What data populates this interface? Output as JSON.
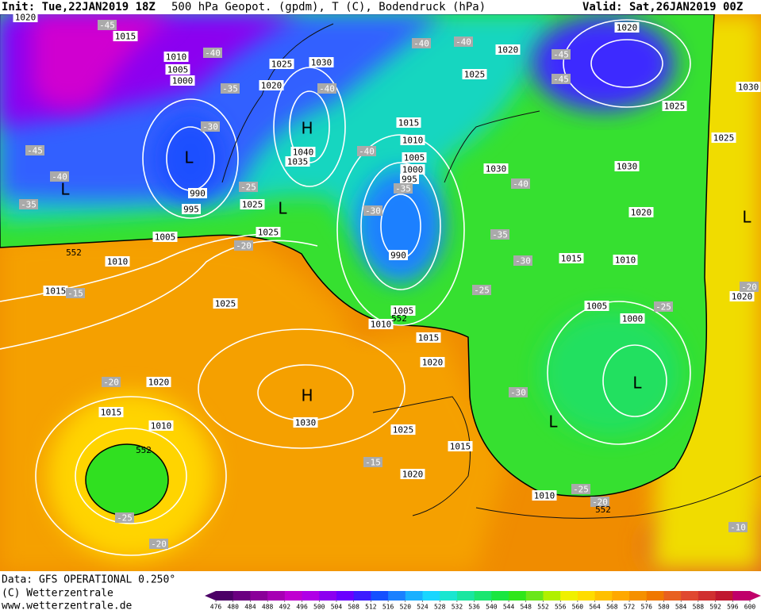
{
  "header": {
    "init": "Init: Tue,22JAN2019 18Z",
    "title": "500 hPa Geopot. (gpdm), T (C), Bodendruck (hPa)",
    "valid": "Valid: Sat,26JAN2019 00Z"
  },
  "footer": {
    "lines": [
      "Data: GFS OPERATIONAL 0.250°",
      "(C) Wetterzentrale",
      "www.wetterzentrale.de"
    ]
  },
  "colorbar": {
    "levels": [
      476,
      480,
      484,
      488,
      492,
      496,
      500,
      504,
      508,
      512,
      516,
      520,
      524,
      528,
      532,
      536,
      540,
      544,
      548,
      552,
      556,
      560,
      564,
      568,
      572,
      576,
      580,
      584,
      588,
      592,
      596,
      600
    ],
    "colors": [
      "#4b0066",
      "#6a0080",
      "#8a0099",
      "#a600b3",
      "#c000d0",
      "#b000e6",
      "#8c00f0",
      "#6a00ff",
      "#3c1cff",
      "#1450ff",
      "#1a80ff",
      "#1ab0ff",
      "#19d6ff",
      "#19e6d0",
      "#19e6a0",
      "#19e670",
      "#19e640",
      "#30e619",
      "#6ae619",
      "#b0f000",
      "#f0f000",
      "#ffdc00",
      "#ffc000",
      "#ffa800",
      "#f59000",
      "#f07800",
      "#e86020",
      "#e04830",
      "#d03030",
      "#c01830",
      "#c0006a"
    ]
  },
  "map": {
    "pressure_labels": [
      "1020",
      "1015",
      "1010",
      "1005",
      "1000",
      "1025",
      "1030",
      "1020",
      "1040",
      "1035",
      "990",
      "995",
      "1025",
      "1005",
      "1025",
      "1010",
      "1015",
      "1025",
      "1020",
      "1015",
      "1010",
      "1030",
      "1025",
      "1015",
      "1020",
      "1010",
      "1015",
      "1010",
      "1005",
      "1000",
      "995",
      "990",
      "1005",
      "1010",
      "1015",
      "1020",
      "1020",
      "1025",
      "1030",
      "1020",
      "1025",
      "1030",
      "1025",
      "1030",
      "1020",
      "1015",
      "1010",
      "1005",
      "1000",
      "1020"
    ],
    "temperature_labels": [
      "-45",
      "-40",
      "-35",
      "-30",
      "-45",
      "-40",
      "-35",
      "-25",
      "-40",
      "-40",
      "-35",
      "-30",
      "-40",
      "-40",
      "-45",
      "-45",
      "-40",
      "-35",
      "-30",
      "-25",
      "-25",
      "-20",
      "-15",
      "-20",
      "-30",
      "-25",
      "-20",
      "-15",
      "-25",
      "-20",
      "-10",
      "-20"
    ],
    "height_labels": [
      "552",
      "552",
      "552",
      "552"
    ],
    "highs": [
      "H",
      "H"
    ],
    "lows": [
      "L",
      "L",
      "L",
      "L",
      "L",
      "L"
    ]
  }
}
